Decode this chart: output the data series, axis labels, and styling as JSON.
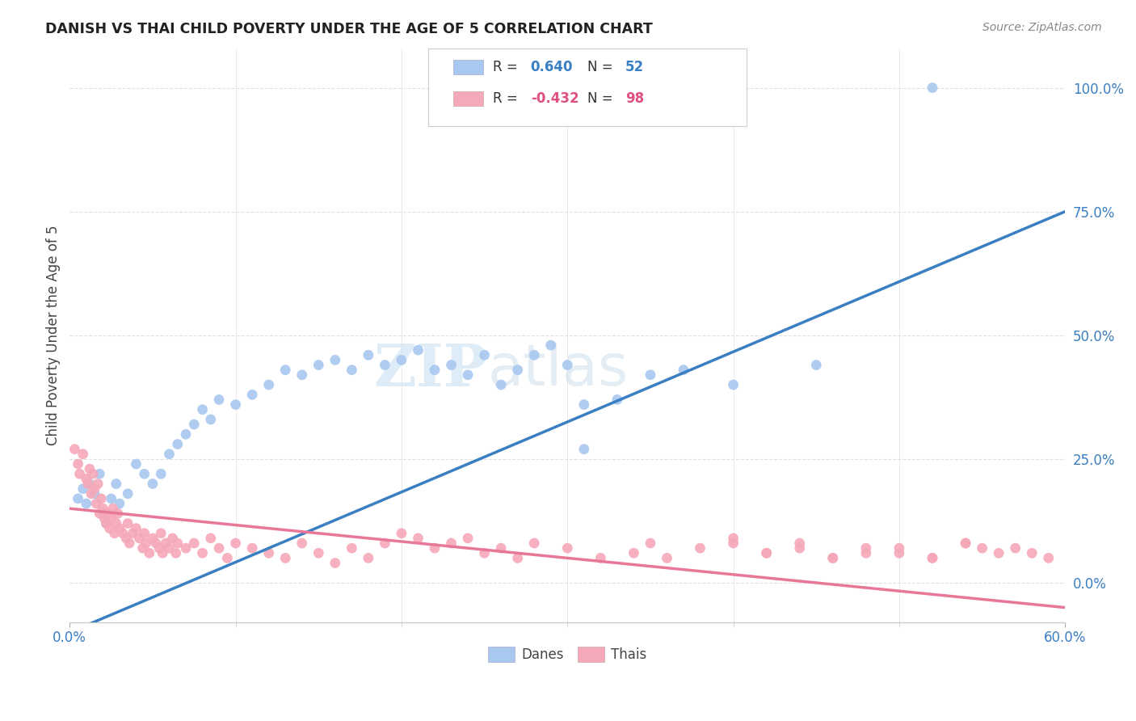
{
  "title": "DANISH VS THAI CHILD POVERTY UNDER THE AGE OF 5 CORRELATION CHART",
  "source": "Source: ZipAtlas.com",
  "ylabel": "Child Poverty Under the Age of 5",
  "ytick_labels": [
    "0.0%",
    "25.0%",
    "50.0%",
    "75.0%",
    "100.0%"
  ],
  "ytick_values": [
    0,
    25,
    50,
    75,
    100
  ],
  "xlim": [
    0,
    60
  ],
  "ylim": [
    -8,
    108
  ],
  "danes_color": "#a8c8f0",
  "thais_color": "#f5a8b8",
  "danes_line_color": "#3a7fc1",
  "thais_line_color": "#e87898",
  "danes_R": 0.64,
  "danes_N": 52,
  "thais_R": -0.432,
  "thais_N": 98,
  "danes_line_x0": 0,
  "danes_line_y0": -10,
  "danes_line_x1": 60,
  "danes_line_y1": 75,
  "thais_line_x0": 0,
  "thais_line_y0": 15,
  "thais_line_x1": 60,
  "thais_line_y1": -5,
  "danes_scatter_x": [
    0.5,
    0.8,
    1.0,
    1.2,
    1.5,
    1.8,
    2.0,
    2.2,
    2.5,
    2.8,
    3.0,
    3.5,
    4.0,
    4.5,
    5.0,
    5.5,
    6.0,
    6.5,
    7.0,
    7.5,
    8.0,
    8.5,
    9.0,
    10.0,
    11.0,
    12.0,
    13.0,
    14.0,
    15.0,
    16.0,
    17.0,
    18.0,
    19.0,
    20.0,
    21.0,
    22.0,
    23.0,
    24.0,
    25.0,
    26.0,
    27.0,
    28.0,
    29.0,
    30.0,
    31.0,
    33.0,
    35.0,
    37.0,
    40.0,
    45.0,
    52.0,
    31.0
  ],
  "danes_scatter_y": [
    17,
    19,
    16,
    20,
    18,
    22,
    14,
    12,
    17,
    20,
    16,
    18,
    24,
    22,
    20,
    22,
    26,
    28,
    30,
    32,
    35,
    33,
    37,
    36,
    38,
    40,
    43,
    42,
    44,
    45,
    43,
    46,
    44,
    45,
    47,
    43,
    44,
    42,
    46,
    40,
    43,
    46,
    48,
    44,
    27,
    37,
    42,
    43,
    40,
    44,
    100,
    36
  ],
  "thais_scatter_x": [
    0.3,
    0.5,
    0.6,
    0.8,
    1.0,
    1.1,
    1.2,
    1.3,
    1.4,
    1.5,
    1.6,
    1.7,
    1.8,
    1.9,
    2.0,
    2.1,
    2.2,
    2.3,
    2.4,
    2.5,
    2.6,
    2.7,
    2.8,
    2.9,
    3.0,
    3.2,
    3.4,
    3.5,
    3.6,
    3.8,
    4.0,
    4.2,
    4.4,
    4.5,
    4.6,
    4.8,
    5.0,
    5.2,
    5.4,
    5.5,
    5.6,
    5.8,
    6.0,
    6.2,
    6.4,
    6.5,
    7.0,
    7.5,
    8.0,
    8.5,
    9.0,
    9.5,
    10.0,
    11.0,
    12.0,
    13.0,
    14.0,
    15.0,
    16.0,
    17.0,
    18.0,
    19.0,
    20.0,
    21.0,
    22.0,
    23.0,
    24.0,
    25.0,
    26.0,
    27.0,
    28.0,
    30.0,
    32.0,
    34.0,
    35.0,
    36.0,
    38.0,
    40.0,
    42.0,
    44.0,
    46.0,
    48.0,
    50.0,
    52.0,
    54.0,
    55.0,
    56.0,
    57.0,
    58.0,
    59.0,
    40.0,
    42.0,
    44.0,
    46.0,
    48.0,
    50.0,
    52.0,
    54.0
  ],
  "thais_scatter_y": [
    27,
    24,
    22,
    26,
    21,
    20,
    23,
    18,
    22,
    19,
    16,
    20,
    14,
    17,
    15,
    13,
    12,
    14,
    11,
    13,
    15,
    10,
    12,
    14,
    11,
    10,
    9,
    12,
    8,
    10,
    11,
    9,
    7,
    10,
    8,
    6,
    9,
    8,
    7,
    10,
    6,
    8,
    7,
    9,
    6,
    8,
    7,
    8,
    6,
    9,
    7,
    5,
    8,
    7,
    6,
    5,
    8,
    6,
    4,
    7,
    5,
    8,
    10,
    9,
    7,
    8,
    9,
    6,
    7,
    5,
    8,
    7,
    5,
    6,
    8,
    5,
    7,
    8,
    6,
    7,
    5,
    6,
    7,
    5,
    8,
    7,
    6,
    7,
    6,
    5,
    9,
    6,
    8,
    5,
    7,
    6,
    5,
    8
  ],
  "watermark_zip": "ZIP",
  "watermark_atlas": "atlas",
  "background_color": "#ffffff",
  "grid_color": "#e0e0e0",
  "tick_color": "#3a7fc1",
  "legend_text_color": "#333333",
  "r_value_color_danes": "#3a7fc1",
  "r_value_color_thais": "#e05080"
}
